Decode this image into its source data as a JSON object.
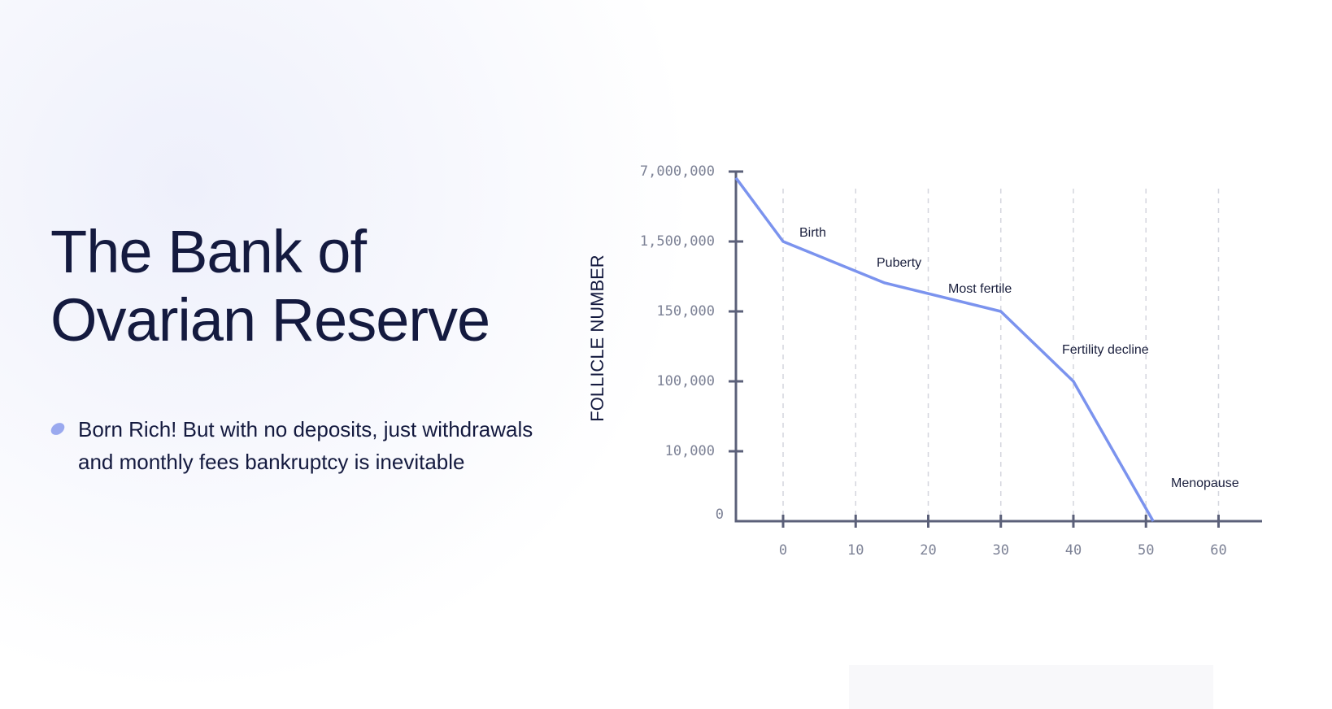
{
  "hero": {
    "title_lines": [
      "The Bank of",
      "Ovarian Reserve"
    ],
    "bullet": "Born Rich! But with no deposits, just withdrawals and monthly fees bankruptcy is inevitable"
  },
  "chart_data": {
    "type": "line",
    "y_label": "FOLLICLE NUMBER",
    "x": [
      -6.5,
      0,
      14,
      30,
      40,
      51
    ],
    "series": [
      {
        "color": "#7b93ee",
        "values": [
          6500000,
          1500000,
          700000,
          150000,
          100000,
          0
        ]
      }
    ],
    "xlim": [
      -6.5,
      66
    ],
    "xticks": [
      0,
      10,
      20,
      30,
      40,
      50,
      60
    ],
    "ylim": [
      0,
      7000000
    ],
    "yticks": [
      0,
      {
        "value": 10000,
        "label": "10,000"
      },
      {
        "value": 100000,
        "label": "100,000"
      },
      {
        "value": 150000,
        "label": "150,000"
      },
      {
        "value": 1500000,
        "label": "1,500,000"
      },
      {
        "value": 7000000,
        "label": "7,000,000"
      }
    ],
    "y_scale": "tick-spaced",
    "grid": true,
    "annotations": [
      "Birth",
      "Puberty",
      "Most fertile",
      "Fertility decline",
      "Menopause"
    ]
  }
}
